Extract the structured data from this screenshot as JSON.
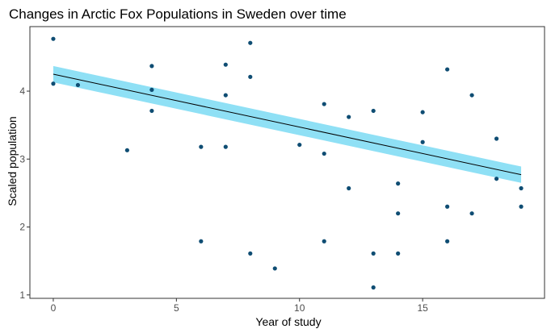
{
  "chart_data": {
    "type": "scatter",
    "title": "Changes in Arctic Fox Populations in Sweden over time",
    "xlabel": "Year of study",
    "ylabel": "Scaled population",
    "xlim": [
      -0.95,
      19.95
    ],
    "ylim": [
      0.95,
      4.95
    ],
    "x_ticks": [
      0,
      5,
      10,
      15
    ],
    "y_ticks": [
      1,
      2,
      3,
      4
    ],
    "grid": false,
    "legend": "none",
    "point_color": "#0f4d73",
    "series": [
      {
        "x": [
          0,
          0,
          1,
          3,
          4,
          4,
          4,
          6,
          6,
          7,
          7,
          7,
          8,
          8,
          8,
          9,
          10,
          11,
          11,
          11,
          12,
          12,
          13,
          13,
          13,
          14,
          14,
          14,
          15,
          15,
          16,
          16,
          16,
          17,
          17,
          18,
          18,
          19,
          19
        ],
        "y": [
          4.77,
          4.11,
          4.09,
          3.13,
          4.37,
          4.02,
          3.71,
          3.18,
          1.79,
          4.39,
          3.94,
          3.18,
          4.71,
          4.21,
          1.61,
          1.39,
          3.21,
          3.81,
          3.08,
          1.79,
          3.62,
          2.57,
          3.71,
          1.61,
          1.11,
          2.64,
          2.2,
          1.61,
          3.69,
          3.25,
          4.32,
          2.3,
          1.79,
          3.94,
          2.2,
          3.3,
          2.71,
          2.57,
          2.3
        ]
      }
    ],
    "trend": {
      "type": "linear fit with confidence band",
      "line_color": "#000000",
      "band_color": "#8fe0f5",
      "x": [
        0,
        19
      ],
      "y": [
        4.25,
        2.77
      ],
      "ci_lower": [
        4.13,
        2.65
      ],
      "ci_upper": [
        4.37,
        2.89
      ]
    }
  }
}
